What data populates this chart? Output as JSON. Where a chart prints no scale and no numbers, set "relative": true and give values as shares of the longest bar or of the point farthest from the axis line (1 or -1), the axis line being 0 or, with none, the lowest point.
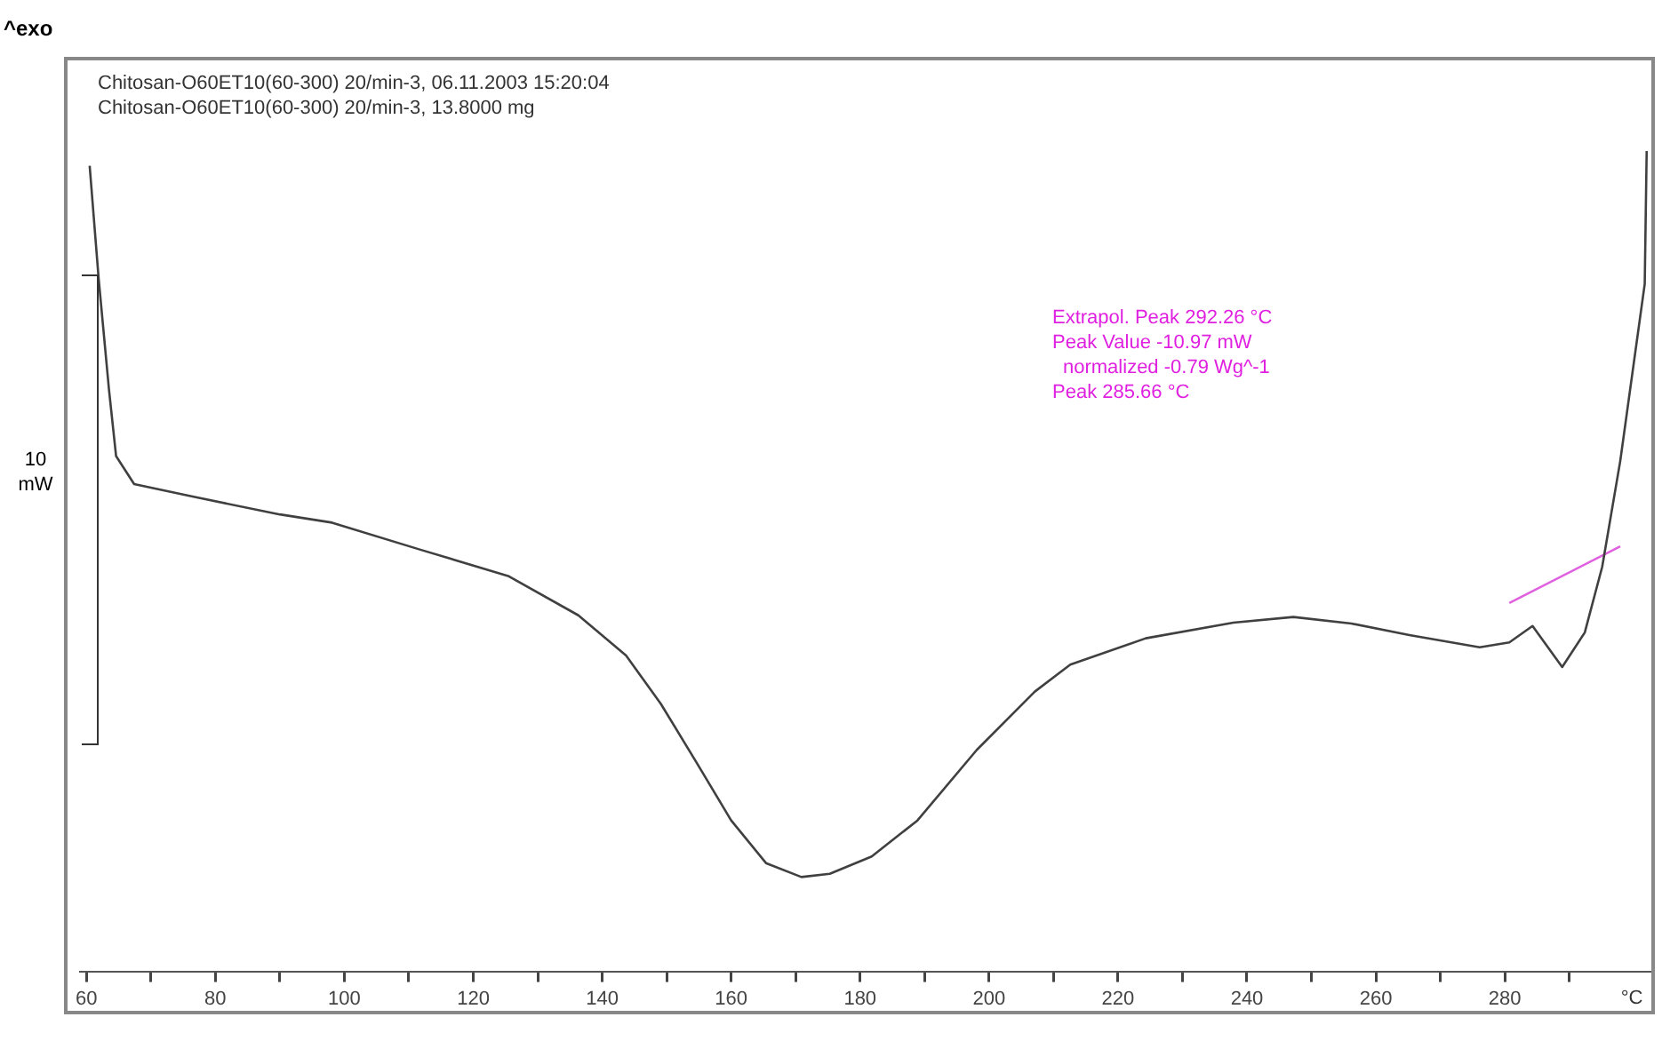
{
  "chart_data": {
    "type": "line",
    "title": "Chitosan-O60ET10(60-300) 20/min-3, 06.11.2003 15:20:04",
    "subtitle": "Chitosan-O60ET10(60-300) 20/min-3, 13.8000 mg",
    "xlabel": "°C",
    "relative": true,
    "annotations": [
      "^exo",
      "10 mW",
      "Extrapol. Peak 292.26 °C",
      "Peak Value -10.97 mW",
      "normalized -0.79 Wg^-1",
      "Peak 285.66 °C"
    ],
    "xlim": [
      59,
      303
    ],
    "xticks": [
      60,
      {
        "value": 70,
        "label": null
      },
      80,
      {
        "value": 90,
        "label": null
      },
      100,
      {
        "value": 110,
        "label": null
      },
      120,
      {
        "value": 130,
        "label": null
      },
      140,
      {
        "value": 150,
        "label": null
      },
      160,
      {
        "value": 170,
        "label": null
      },
      180,
      {
        "value": 190,
        "label": null
      },
      200,
      {
        "value": 210,
        "label": null
      },
      220,
      {
        "value": 230,
        "label": null
      },
      240,
      {
        "value": 250,
        "label": null
      },
      260,
      {
        "value": 270,
        "label": null
      },
      280,
      {
        "value": 290,
        "label": null
      }
    ],
    "grid": false,
    "legend": false,
    "marker": "none",
    "line_style": "solid",
    "series": [
      {
        "color": "#404040",
        "x": [
          60.5,
          61.9,
          63.5,
          64.6,
          67.4,
          76.3,
          90.0,
          98.1,
          111.8,
          125.4,
          136.3,
          143.7,
          149.1,
          154.6,
          160.0,
          165.4,
          170.9,
          175.3,
          181.8,
          188.9,
          198.1,
          207.1,
          212.6,
          224.3,
          237.9,
          247.2,
          256.2,
          265.2,
          276.1,
          280.7,
          284.3,
          288.9,
          292.4,
          295.1,
          297.9,
          299.8,
          301.7,
          302
        ],
        "values": [
          0.982,
          0.844,
          0.709,
          0.628,
          0.594,
          0.579,
          0.557,
          0.547,
          0.514,
          0.482,
          0.434,
          0.385,
          0.326,
          0.255,
          0.184,
          0.132,
          0.115,
          0.119,
          0.14,
          0.184,
          0.27,
          0.341,
          0.374,
          0.406,
          0.425,
          0.432,
          0.424,
          0.41,
          0.395,
          0.401,
          0.421,
          0.371,
          0.413,
          0.493,
          0.622,
          0.73,
          0.838,
          1
        ]
      },
      {
        "type": "line",
        "color": "#e060e0",
        "x": [
          280.7,
          297.9
        ],
        "values": [
          0.449,
          0.518
        ]
      }
    ]
  }
}
